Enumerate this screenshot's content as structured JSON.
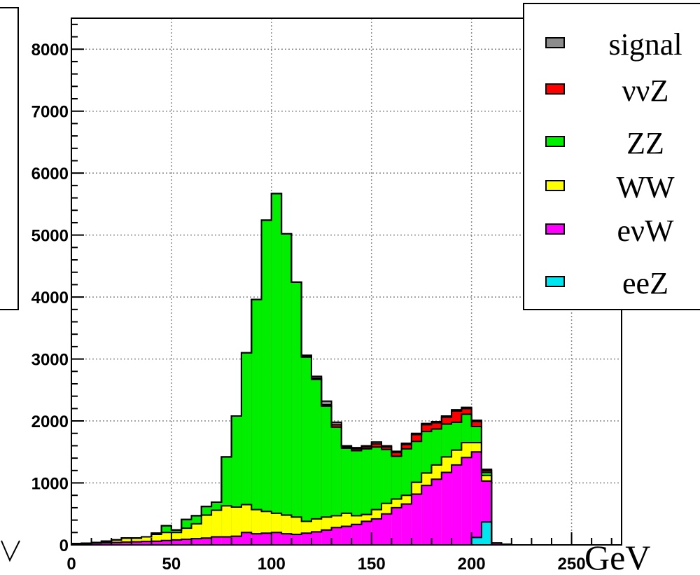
{
  "chart_data": {
    "type": "stacked-histogram",
    "x_unit": "GeV",
    "xlim": [
      0,
      275
    ],
    "ylim": [
      0,
      8500
    ],
    "x_ticks": [
      "0",
      "50",
      "100",
      "150",
      "200",
      "250"
    ],
    "x_tick_values": [
      0,
      50,
      100,
      150,
      200,
      250
    ],
    "y_ticks": [
      "0",
      "1000",
      "2000",
      "3000",
      "4000",
      "5000",
      "6000",
      "7000",
      "8000"
    ],
    "y_tick_values": [
      0,
      1000,
      2000,
      3000,
      4000,
      5000,
      6000,
      7000,
      8000
    ],
    "grid": true,
    "legend_position": "top-right",
    "bin_width": 5,
    "bin_edges_start": 0,
    "series": [
      {
        "name": "eeZ",
        "color": "#00e5f0",
        "values": [
          0,
          0,
          0,
          0,
          0,
          0,
          0,
          0,
          0,
          0,
          0,
          0,
          0,
          0,
          0,
          0,
          0,
          0,
          0,
          0,
          0,
          0,
          0,
          0,
          0,
          0,
          0,
          0,
          0,
          0,
          0,
          0,
          0,
          0,
          0,
          0,
          0,
          0,
          0,
          0,
          0,
          0,
          0,
          0,
          0,
          0,
          0,
          0,
          0,
          0,
          0,
          0,
          0,
          0,
          0,
          0,
          0,
          0,
          0,
          0,
          0,
          0,
          0,
          0,
          0,
          0,
          0,
          0,
          0,
          0,
          0,
          0,
          0,
          0,
          0,
          0,
          0,
          0,
          0,
          0,
          0,
          0,
          0,
          0,
          0,
          0,
          0,
          0,
          0,
          0,
          0,
          0,
          0,
          0,
          0,
          0,
          0,
          0,
          0,
          0,
          0,
          0,
          0,
          0,
          0,
          0,
          0,
          0,
          0,
          0,
          0,
          0,
          0,
          0,
          0,
          0,
          0,
          0,
          0,
          0,
          0,
          0,
          0,
          0,
          0,
          0,
          0,
          0,
          0,
          0,
          0,
          0,
          0,
          0,
          0,
          0,
          0,
          0,
          0,
          0,
          0,
          0,
          0,
          0,
          0,
          0,
          0,
          0,
          0,
          0,
          0,
          0,
          0,
          0,
          0,
          0,
          0,
          0,
          0,
          0,
          0,
          0,
          0,
          0,
          0,
          0,
          0,
          0,
          0,
          0,
          0,
          0,
          0,
          0,
          0,
          0,
          0,
          0,
          0,
          0,
          0,
          0,
          0,
          0,
          0,
          0,
          0,
          0,
          0,
          0,
          0,
          0,
          0,
          0,
          0,
          0,
          0,
          0,
          0,
          0,
          0,
          0,
          0,
          0,
          0,
          0,
          0,
          0,
          0,
          0,
          0,
          0,
          0,
          0,
          0,
          0,
          0,
          0,
          0,
          0,
          0,
          0,
          0,
          0,
          0,
          0,
          0,
          0,
          0,
          0,
          0,
          0,
          0,
          0,
          0,
          0,
          0,
          0,
          0,
          0,
          0,
          0,
          0,
          0,
          0,
          0,
          0,
          0,
          0,
          0,
          0,
          0,
          0,
          0,
          0,
          0,
          0,
          0,
          0,
          0,
          0,
          0,
          0,
          0,
          0,
          0,
          0,
          0,
          0,
          0,
          0,
          0
        ]
      },
      {
        "name": "eνW",
        "color": "#ff00ff",
        "values": []
      },
      {
        "name": "WW",
        "color": "#ffff00",
        "values": []
      },
      {
        "name": "ZZ",
        "color": "#00ee00",
        "values": []
      },
      {
        "name": "ννZ",
        "color": "#ff0000",
        "values": []
      },
      {
        "name": "signal",
        "color": "#8c8c8c",
        "values": []
      }
    ],
    "bins": [
      {
        "x": 0,
        "eeZ": 0,
        "evW": 20,
        "WW": 20,
        "ZZ": 20,
        "vvZ": 20,
        "signal": 20
      },
      {
        "x": 5,
        "eeZ": 0,
        "evW": 25,
        "WW": 25,
        "ZZ": 25,
        "vvZ": 25,
        "signal": 25
      },
      {
        "x": 10,
        "eeZ": 0,
        "evW": 30,
        "WW": 40,
        "ZZ": 40,
        "vvZ": 40,
        "signal": 40
      },
      {
        "x": 15,
        "eeZ": 0,
        "evW": 35,
        "WW": 60,
        "ZZ": 60,
        "vvZ": 60,
        "signal": 60
      },
      {
        "x": 20,
        "eeZ": 0,
        "evW": 40,
        "WW": 80,
        "ZZ": 80,
        "vvZ": 80,
        "signal": 80
      },
      {
        "x": 25,
        "eeZ": 0,
        "evW": 45,
        "WW": 110,
        "ZZ": 110,
        "vvZ": 110,
        "signal": 110
      },
      {
        "x": 30,
        "eeZ": 0,
        "evW": 50,
        "WW": 110,
        "ZZ": 110,
        "vvZ": 110,
        "signal": 110
      },
      {
        "x": 35,
        "eeZ": 0,
        "evW": 55,
        "WW": 130,
        "ZZ": 130,
        "vvZ": 130,
        "signal": 130
      },
      {
        "x": 40,
        "eeZ": 0,
        "evW": 60,
        "WW": 170,
        "ZZ": 190,
        "vvZ": 190,
        "signal": 190
      },
      {
        "x": 45,
        "eeZ": 0,
        "evW": 70,
        "WW": 200,
        "ZZ": 310,
        "vvZ": 310,
        "signal": 310
      },
      {
        "x": 50,
        "eeZ": 0,
        "evW": 80,
        "WW": 200,
        "ZZ": 240,
        "vvZ": 240,
        "signal": 240
      },
      {
        "x": 55,
        "eeZ": 0,
        "evW": 90,
        "WW": 270,
        "ZZ": 410,
        "vvZ": 410,
        "signal": 410
      },
      {
        "x": 60,
        "eeZ": 0,
        "evW": 100,
        "WW": 340,
        "ZZ": 470,
        "vvZ": 470,
        "signal": 470
      },
      {
        "x": 65,
        "eeZ": 0,
        "evW": 110,
        "WW": 480,
        "ZZ": 620,
        "vvZ": 620,
        "signal": 620
      },
      {
        "x": 70,
        "eeZ": 0,
        "evW": 130,
        "WW": 560,
        "ZZ": 690,
        "vvZ": 690,
        "signal": 690
      },
      {
        "x": 75,
        "eeZ": 0,
        "evW": 130,
        "WW": 630,
        "ZZ": 1420,
        "vvZ": 1420,
        "signal": 1420
      },
      {
        "x": 80,
        "eeZ": 0,
        "evW": 140,
        "WW": 610,
        "ZZ": 2080,
        "vvZ": 2080,
        "signal": 2080
      },
      {
        "x": 85,
        "eeZ": 0,
        "evW": 200,
        "WW": 650,
        "ZZ": 3100,
        "vvZ": 3100,
        "signal": 3100
      },
      {
        "x": 90,
        "eeZ": 0,
        "evW": 180,
        "WW": 570,
        "ZZ": 3960,
        "vvZ": 3960,
        "signal": 3960
      },
      {
        "x": 95,
        "eeZ": 0,
        "evW": 190,
        "WW": 540,
        "ZZ": 5240,
        "vvZ": 5240,
        "signal": 5240
      },
      {
        "x": 100,
        "eeZ": 0,
        "evW": 200,
        "WW": 510,
        "ZZ": 5670,
        "vvZ": 5670,
        "signal": 5670
      },
      {
        "x": 105,
        "eeZ": 0,
        "evW": 180,
        "WW": 480,
        "ZZ": 5020,
        "vvZ": 5020,
        "signal": 5020
      },
      {
        "x": 110,
        "eeZ": 0,
        "evW": 170,
        "WW": 450,
        "ZZ": 4240,
        "vvZ": 4240,
        "signal": 4240
      },
      {
        "x": 115,
        "eeZ": 0,
        "evW": 190,
        "WW": 380,
        "ZZ": 3030,
        "vvZ": 3040,
        "signal": 3060
      },
      {
        "x": 120,
        "eeZ": 0,
        "evW": 210,
        "WW": 420,
        "ZZ": 2670,
        "vvZ": 2690,
        "signal": 2720
      },
      {
        "x": 125,
        "eeZ": 0,
        "evW": 240,
        "WW": 450,
        "ZZ": 2240,
        "vvZ": 2260,
        "signal": 2320
      },
      {
        "x": 130,
        "eeZ": 0,
        "evW": 280,
        "WW": 470,
        "ZZ": 1900,
        "vvZ": 1940,
        "signal": 1980
      },
      {
        "x": 135,
        "eeZ": 0,
        "evW": 300,
        "WW": 510,
        "ZZ": 1560,
        "vvZ": 1580,
        "signal": 1600
      },
      {
        "x": 140,
        "eeZ": 0,
        "evW": 330,
        "WW": 470,
        "ZZ": 1520,
        "vvZ": 1550,
        "signal": 1570
      },
      {
        "x": 145,
        "eeZ": 0,
        "evW": 380,
        "WW": 490,
        "ZZ": 1550,
        "vvZ": 1580,
        "signal": 1600
      },
      {
        "x": 150,
        "eeZ": 0,
        "evW": 420,
        "WW": 570,
        "ZZ": 1580,
        "vvZ": 1630,
        "signal": 1660
      },
      {
        "x": 155,
        "eeZ": 0,
        "evW": 500,
        "WW": 670,
        "ZZ": 1540,
        "vvZ": 1580,
        "signal": 1600
      },
      {
        "x": 160,
        "eeZ": 0,
        "evW": 600,
        "WW": 740,
        "ZZ": 1430,
        "vvZ": 1490,
        "signal": 1510
      },
      {
        "x": 165,
        "eeZ": 0,
        "evW": 660,
        "WW": 800,
        "ZZ": 1550,
        "vvZ": 1620,
        "signal": 1640
      },
      {
        "x": 170,
        "eeZ": 0,
        "evW": 820,
        "WW": 1010,
        "ZZ": 1670,
        "vvZ": 1780,
        "signal": 1800
      },
      {
        "x": 175,
        "eeZ": 0,
        "evW": 960,
        "WW": 1160,
        "ZZ": 1830,
        "vvZ": 1940,
        "signal": 1960
      },
      {
        "x": 180,
        "eeZ": 0,
        "evW": 1060,
        "WW": 1290,
        "ZZ": 1870,
        "vvZ": 1970,
        "signal": 1990
      },
      {
        "x": 185,
        "eeZ": 0,
        "evW": 1170,
        "WW": 1420,
        "ZZ": 1950,
        "vvZ": 2060,
        "signal": 2080
      },
      {
        "x": 190,
        "eeZ": 0,
        "evW": 1290,
        "WW": 1530,
        "ZZ": 1980,
        "vvZ": 2160,
        "signal": 2180
      },
      {
        "x": 195,
        "eeZ": 0,
        "evW": 1410,
        "WW": 1650,
        "ZZ": 2110,
        "vvZ": 2200,
        "signal": 2220
      },
      {
        "x": 200,
        "eeZ": 120,
        "evW": 1500,
        "WW": 1650,
        "ZZ": 1910,
        "vvZ": 1990,
        "signal": 2010
      },
      {
        "x": 205,
        "eeZ": 370,
        "evW": 1030,
        "WW": 1120,
        "ZZ": 1170,
        "vvZ": 1200,
        "signal": 1220
      },
      {
        "x": 210,
        "eeZ": 0,
        "evW": 30,
        "WW": 30,
        "ZZ": 30,
        "vvZ": 30,
        "signal": 30
      },
      {
        "x": 215,
        "eeZ": 0,
        "evW": 10,
        "WW": 10,
        "ZZ": 10,
        "vvZ": 10,
        "signal": 10
      },
      {
        "x": 220,
        "eeZ": 0,
        "evW": 0,
        "WW": 0,
        "ZZ": 0,
        "vvZ": 0,
        "signal": 0
      }
    ],
    "legend": [
      {
        "label": "signal",
        "color": "#8c8c8c"
      },
      {
        "label": "ννZ",
        "color": "#ff0000"
      },
      {
        "label": "ZZ",
        "color": "#00ee00"
      },
      {
        "label": "WW",
        "color": "#ffff00"
      },
      {
        "label": "eνW",
        "color": "#ff00ff"
      },
      {
        "label": "eeZ",
        "color": "#00e5f0"
      }
    ]
  }
}
